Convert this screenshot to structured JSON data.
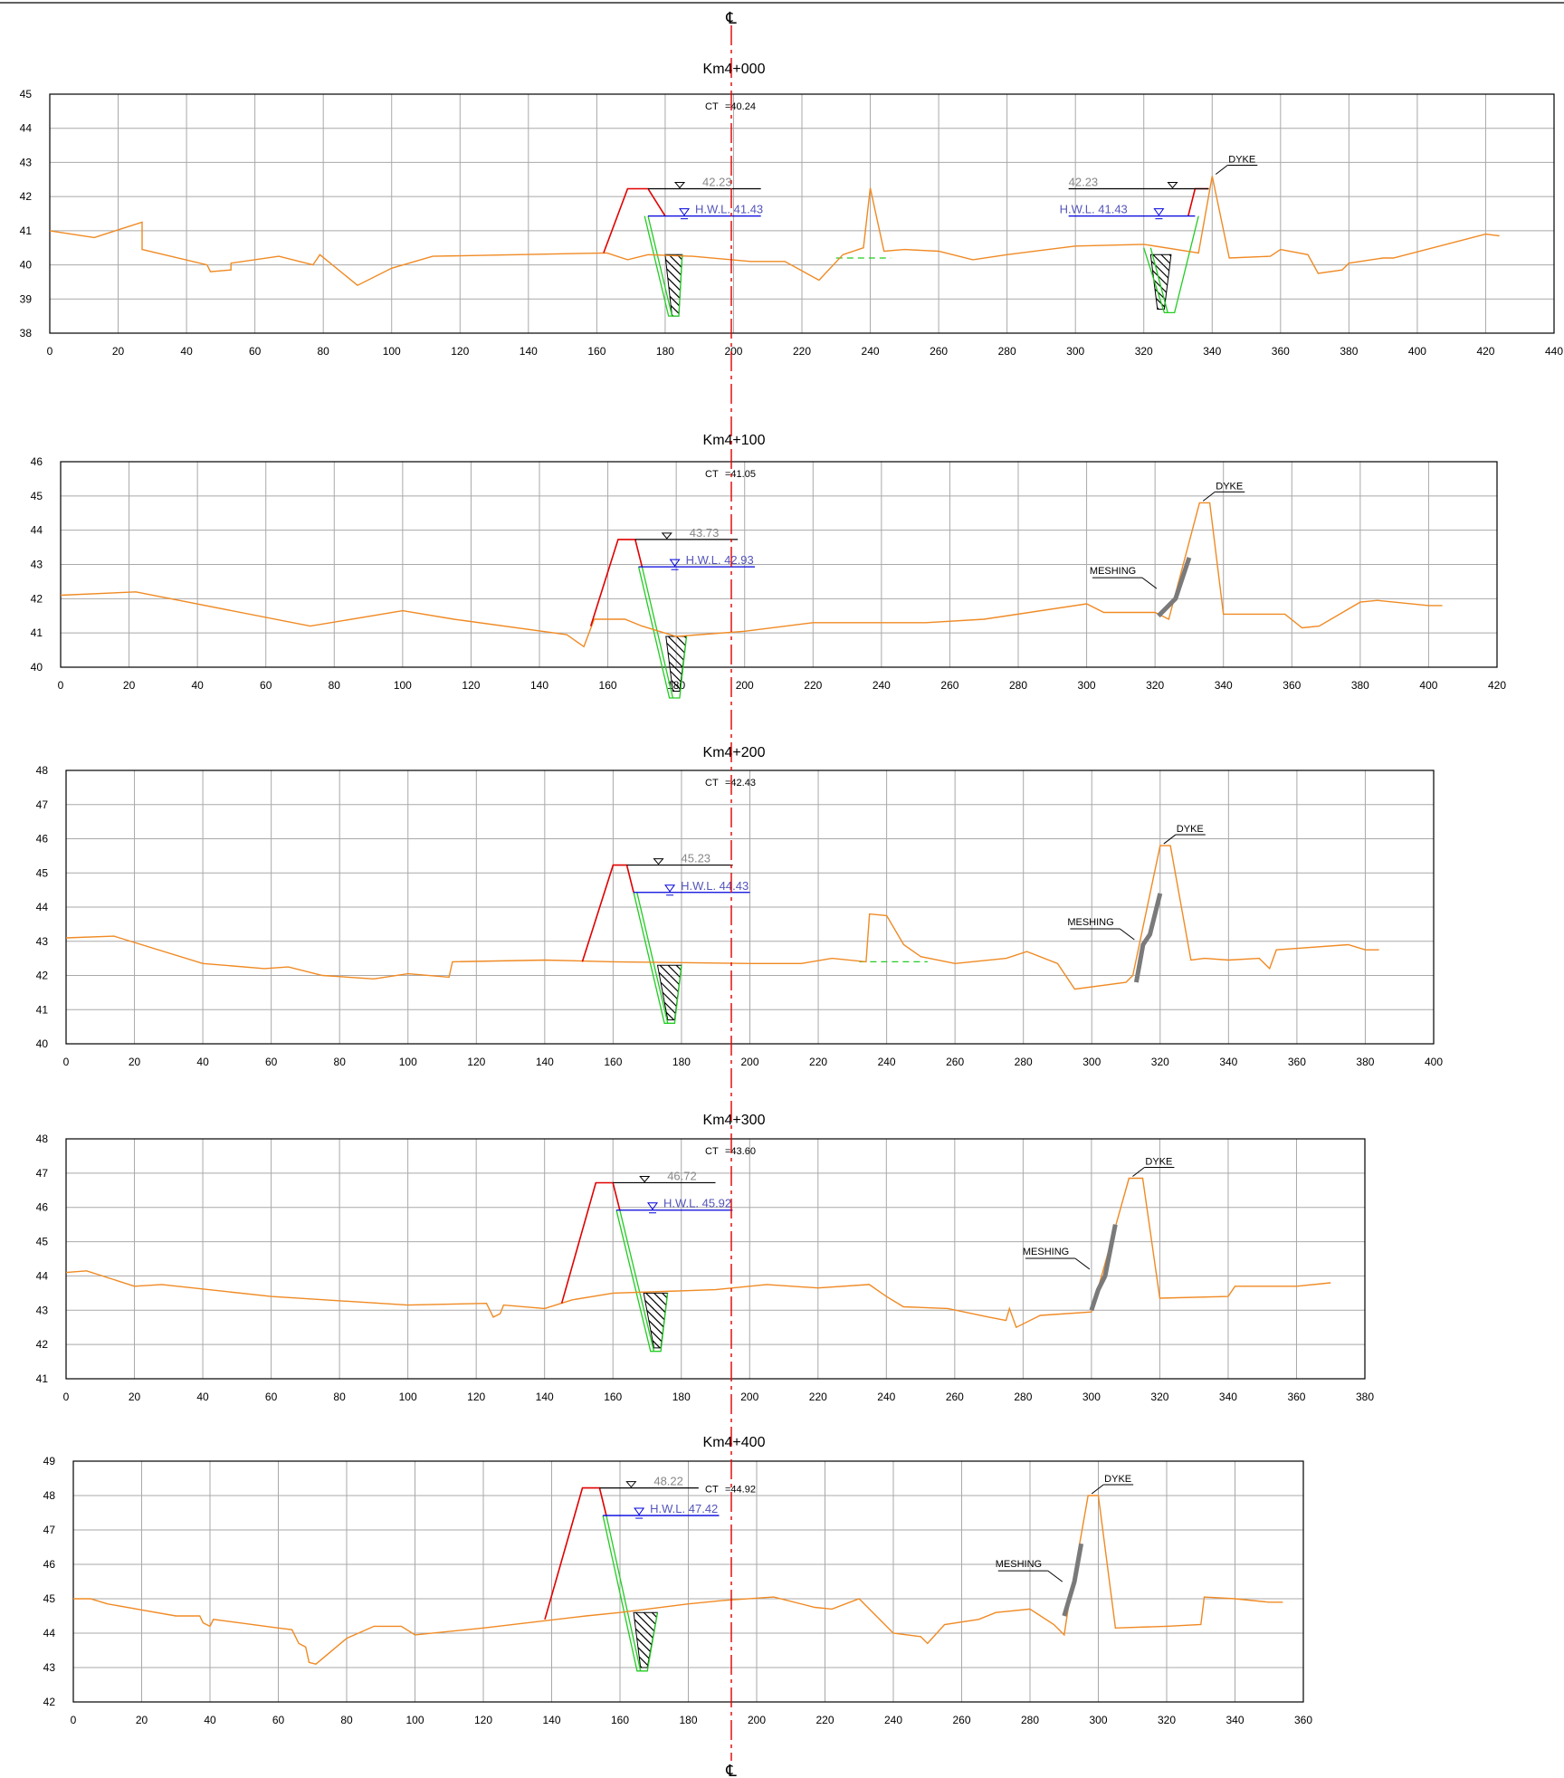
{
  "centerline_symbol": "℄",
  "colors": {
    "ground": "#f08a24",
    "slope": "#e00000",
    "canal": "#22cc22",
    "hwl": "#0000dd",
    "grid": "#a9a9a9",
    "centerline": "#e00000"
  },
  "sections": [
    {
      "title": "Km4+000",
      "ct_label": "CT",
      "ct_value": "=40.24",
      "xlim": [
        0,
        440
      ],
      "ylim": [
        38,
        45
      ],
      "x_step": 20,
      "crest_level": "42.23",
      "hwl_label": "H.W.L.",
      "hwl_value": "41.43",
      "right_crest_level": "42.23",
      "right_hwl_label": "H.W.L.",
      "right_hwl_value": "41.43",
      "dyke_label": "DYKE",
      "meshing_label": "",
      "ground": [
        [
          0,
          41
        ],
        [
          13,
          40.8
        ],
        [
          27,
          41.25
        ],
        [
          27,
          40.45
        ],
        [
          46,
          40
        ],
        [
          47,
          39.8
        ],
        [
          53,
          39.85
        ],
        [
          53,
          40.05
        ],
        [
          67,
          40.25
        ],
        [
          77,
          40
        ],
        [
          79,
          40.3
        ],
        [
          90,
          39.4
        ],
        [
          100,
          39.9
        ],
        [
          112,
          40.25
        ],
        [
          163,
          40.35
        ],
        [
          169,
          40.15
        ],
        [
          175,
          40.3
        ],
        [
          188,
          40.25
        ],
        [
          205,
          40.1
        ],
        [
          215,
          40.1
        ],
        [
          225,
          39.55
        ],
        [
          232,
          40.3
        ],
        [
          238,
          40.5
        ],
        [
          240,
          42.25
        ],
        [
          244,
          40.4
        ],
        [
          250,
          40.45
        ],
        [
          260,
          40.4
        ],
        [
          270,
          40.15
        ],
        [
          280,
          40.3
        ],
        [
          300,
          40.55
        ],
        [
          320,
          40.6
        ],
        [
          336,
          40.35
        ],
        [
          340,
          42.6
        ],
        [
          345,
          40.2
        ],
        [
          357,
          40.25
        ],
        [
          360,
          40.45
        ],
        [
          368,
          40.3
        ],
        [
          371,
          39.75
        ],
        [
          378,
          39.85
        ],
        [
          380,
          40.05
        ],
        [
          390,
          40.2
        ],
        [
          393,
          40.2
        ],
        [
          420,
          40.9
        ],
        [
          424,
          40.85
        ]
      ],
      "left_slope": [
        [
          162,
          40.35
        ],
        [
          169,
          42.23
        ],
        [
          175,
          42.23
        ],
        [
          180,
          41.43
        ]
      ],
      "right_slope": [
        [
          333,
          41.43
        ],
        [
          335,
          42.23
        ],
        [
          339,
          42.23
        ]
      ],
      "crest_line": [
        175,
        208
      ],
      "right_crest_line": [
        298,
        339
      ],
      "hwl_line": [
        175,
        208
      ],
      "right_hwl_line": [
        298,
        335
      ],
      "canal_a": [
        [
          174,
          41.43
        ],
        [
          181,
          38.5
        ],
        [
          184,
          38.5
        ],
        [
          185,
          40.3
        ]
      ],
      "canal_a_inner": [
        [
          175,
          41.43
        ],
        [
          182,
          38.5
        ]
      ],
      "canal_b": [
        [
          320,
          40.5
        ],
        [
          326,
          38.6
        ],
        [
          329,
          38.6
        ],
        [
          336,
          41.43
        ]
      ],
      "canal_b_inner": [
        [
          322,
          40.5
        ],
        [
          327,
          38.6
        ]
      ],
      "hatch_a": [
        [
          180,
          40.3
        ],
        [
          185,
          40.3
        ],
        [
          184,
          38.5
        ],
        [
          182,
          38.5
        ]
      ],
      "hatch_b": [
        [
          322,
          40.3
        ],
        [
          328,
          40.3
        ],
        [
          326,
          38.7
        ],
        [
          324,
          38.7
        ]
      ],
      "dashed_green": [
        [
          230,
          40.2
        ],
        [
          246,
          40.2
        ]
      ],
      "meshing": []
    },
    {
      "title": "Km4+100",
      "ct_label": "CT",
      "ct_value": "=41.05",
      "xlim": [
        0,
        420
      ],
      "ylim": [
        40,
        46
      ],
      "x_step": 20,
      "crest_level": "43.73",
      "hwl_label": "H.W.L.",
      "hwl_value": "42.93",
      "right_crest_level": "",
      "right_hwl_label": "",
      "right_hwl_value": "",
      "dyke_label": "DYKE",
      "meshing_label": "MESHING",
      "ground": [
        [
          0,
          42.1
        ],
        [
          22,
          42.2
        ],
        [
          73,
          41.2
        ],
        [
          100,
          41.65
        ],
        [
          115,
          41.4
        ],
        [
          148,
          40.95
        ],
        [
          153,
          40.6
        ],
        [
          156,
          41.4
        ],
        [
          165,
          41.4
        ],
        [
          170,
          41.2
        ],
        [
          180,
          40.9
        ],
        [
          200,
          41.05
        ],
        [
          220,
          41.3
        ],
        [
          240,
          41.3
        ],
        [
          253,
          41.3
        ],
        [
          270,
          41.4
        ],
        [
          300,
          41.85
        ],
        [
          305,
          41.6
        ],
        [
          320,
          41.6
        ],
        [
          324,
          41.4
        ],
        [
          333,
          44.8
        ],
        [
          336,
          44.8
        ],
        [
          340,
          41.55
        ],
        [
          358,
          41.55
        ],
        [
          363,
          41.15
        ],
        [
          368,
          41.2
        ],
        [
          380,
          41.9
        ],
        [
          385,
          41.95
        ],
        [
          400,
          41.8
        ],
        [
          404,
          41.8
        ]
      ],
      "left_slope": [
        [
          155,
          41.2
        ],
        [
          163,
          43.73
        ],
        [
          168,
          43.73
        ],
        [
          170,
          42.93
        ]
      ],
      "right_slope": [],
      "crest_line": [
        168,
        198
      ],
      "right_crest_line": [],
      "hwl_line": [
        169,
        203
      ],
      "right_hwl_line": [],
      "canal_a": [
        [
          169,
          42.93
        ],
        [
          178,
          39.1
        ],
        [
          181,
          39.1
        ],
        [
          183,
          40.9
        ]
      ],
      "canal_a_inner": [
        [
          170,
          42.93
        ],
        [
          179,
          39.1
        ]
      ],
      "canal_b": [],
      "canal_b_inner": [],
      "hatch_a": [
        [
          177,
          40.9
        ],
        [
          183,
          40.9
        ],
        [
          181,
          39.3
        ],
        [
          179,
          39.3
        ]
      ],
      "hatch_b": [],
      "dashed_green": [],
      "meshing": [
        [
          321,
          41.5
        ],
        [
          326,
          42
        ],
        [
          330,
          43.2
        ]
      ]
    },
    {
      "title": "Km4+200",
      "ct_label": "CT",
      "ct_value": "=42.43",
      "xlim": [
        0,
        400
      ],
      "ylim": [
        40,
        48
      ],
      "x_step": 20,
      "crest_level": "45.23",
      "hwl_label": "H.W.L.",
      "hwl_value": "44.43",
      "right_crest_level": "",
      "right_hwl_label": "",
      "right_hwl_value": "",
      "dyke_label": "DYKE",
      "meshing_label": "MESHING",
      "ground": [
        [
          0,
          43.1
        ],
        [
          14,
          43.15
        ],
        [
          40,
          42.35
        ],
        [
          58,
          42.2
        ],
        [
          65,
          42.25
        ],
        [
          75,
          42
        ],
        [
          90,
          41.9
        ],
        [
          100,
          42.05
        ],
        [
          112,
          41.95
        ],
        [
          113,
          42.4
        ],
        [
          140,
          42.45
        ],
        [
          160,
          42.4
        ],
        [
          200,
          42.35
        ],
        [
          215,
          42.35
        ],
        [
          224,
          42.5
        ],
        [
          234,
          42.4
        ],
        [
          235,
          43.8
        ],
        [
          240,
          43.75
        ],
        [
          245,
          42.9
        ],
        [
          250,
          42.55
        ],
        [
          260,
          42.35
        ],
        [
          275,
          42.5
        ],
        [
          281,
          42.7
        ],
        [
          290,
          42.35
        ],
        [
          295,
          41.6
        ],
        [
          310,
          41.8
        ],
        [
          312,
          42
        ],
        [
          320,
          45.8
        ],
        [
          323,
          45.8
        ],
        [
          329,
          42.45
        ],
        [
          333,
          42.5
        ],
        [
          340,
          42.45
        ],
        [
          349,
          42.5
        ],
        [
          352,
          42.2
        ],
        [
          354,
          42.75
        ],
        [
          361,
          42.8
        ],
        [
          375,
          42.9
        ],
        [
          380,
          42.75
        ],
        [
          384,
          42.75
        ]
      ],
      "left_slope": [
        [
          151,
          42.4
        ],
        [
          160,
          45.23
        ],
        [
          164,
          45.23
        ],
        [
          166,
          44.43
        ]
      ],
      "right_slope": [],
      "crest_line": [
        164,
        195
      ],
      "right_crest_line": [],
      "hwl_line": [
        166,
        200
      ],
      "right_hwl_line": [],
      "canal_a": [
        [
          166,
          44.43
        ],
        [
          175,
          40.6
        ],
        [
          178,
          40.6
        ],
        [
          180,
          42.3
        ]
      ],
      "canal_a_inner": [
        [
          167,
          44.43
        ],
        [
          176,
          40.6
        ]
      ],
      "canal_b": [],
      "canal_b_inner": [],
      "hatch_a": [
        [
          173,
          42.3
        ],
        [
          180,
          42.3
        ],
        [
          178,
          40.7
        ],
        [
          176,
          40.7
        ]
      ],
      "hatch_b": [],
      "dashed_green": [
        [
          232,
          42.4
        ],
        [
          252,
          42.4
        ]
      ],
      "meshing": [
        [
          313,
          41.8
        ],
        [
          315,
          42.9
        ],
        [
          317,
          43.2
        ],
        [
          320,
          44.4
        ]
      ]
    },
    {
      "title": "Km4+300",
      "ct_label": "CT",
      "ct_value": "=43.60",
      "xlim": [
        0,
        380
      ],
      "ylim": [
        41,
        48
      ],
      "x_step": 20,
      "crest_level": "46.72",
      "hwl_label": "H.W.L.",
      "hwl_value": "45.92",
      "right_crest_level": "",
      "right_hwl_label": "",
      "right_hwl_value": "",
      "dyke_label": "DYKE",
      "meshing_label": "MESHING",
      "ground": [
        [
          0,
          44.1
        ],
        [
          6,
          44.15
        ],
        [
          20,
          43.7
        ],
        [
          28,
          43.75
        ],
        [
          60,
          43.4
        ],
        [
          100,
          43.15
        ],
        [
          123,
          43.2
        ],
        [
          125,
          42.8
        ],
        [
          127,
          42.9
        ],
        [
          128,
          43.15
        ],
        [
          140,
          43.05
        ],
        [
          148,
          43.3
        ],
        [
          160,
          43.5
        ],
        [
          175,
          43.55
        ],
        [
          190,
          43.6
        ],
        [
          205,
          43.75
        ],
        [
          220,
          43.65
        ],
        [
          235,
          43.75
        ],
        [
          240,
          43.4
        ],
        [
          245,
          43.1
        ],
        [
          258,
          43.05
        ],
        [
          270,
          42.8
        ],
        [
          275,
          42.7
        ],
        [
          276,
          43.05
        ],
        [
          278,
          42.5
        ],
        [
          285,
          42.85
        ],
        [
          300,
          42.95
        ],
        [
          311,
          46.85
        ],
        [
          315,
          46.85
        ],
        [
          320,
          43.35
        ],
        [
          340,
          43.4
        ],
        [
          342,
          43.7
        ],
        [
          360,
          43.7
        ],
        [
          370,
          43.8
        ]
      ],
      "left_slope": [
        [
          145,
          43.2
        ],
        [
          155,
          46.72
        ],
        [
          160,
          46.72
        ],
        [
          162,
          45.92
        ]
      ],
      "right_slope": [],
      "crest_line": [
        160,
        190
      ],
      "right_crest_line": [],
      "hwl_line": [
        161,
        195
      ],
      "right_hwl_line": [],
      "canal_a": [
        [
          161,
          45.92
        ],
        [
          171,
          41.8
        ],
        [
          174,
          41.8
        ],
        [
          176,
          43.5
        ]
      ],
      "canal_a_inner": [
        [
          162,
          45.92
        ],
        [
          172,
          41.8
        ]
      ],
      "canal_b": [],
      "canal_b_inner": [],
      "hatch_a": [
        [
          169,
          43.5
        ],
        [
          176,
          43.5
        ],
        [
          174,
          41.9
        ],
        [
          172,
          41.9
        ]
      ],
      "hatch_b": [],
      "dashed_green": [],
      "meshing": [
        [
          300,
          43
        ],
        [
          302,
          43.6
        ],
        [
          304,
          44
        ],
        [
          307,
          45.5
        ]
      ]
    },
    {
      "title": "Km4+400",
      "ct_label": "CT",
      "ct_value": "=44.92",
      "xlim": [
        0,
        360
      ],
      "ylim": [
        42,
        49
      ],
      "x_step": 20,
      "crest_level": "48.22",
      "hwl_label": "H.W.L.",
      "hwl_value": "47.42",
      "right_crest_level": "",
      "right_hwl_label": "",
      "right_hwl_value": "",
      "dyke_label": "DYKE",
      "meshing_label": "MESHING",
      "ground": [
        [
          0,
          45
        ],
        [
          5,
          45
        ],
        [
          10,
          44.85
        ],
        [
          30,
          44.5
        ],
        [
          37,
          44.5
        ],
        [
          38,
          44.3
        ],
        [
          40,
          44.2
        ],
        [
          41,
          44.4
        ],
        [
          60,
          44.15
        ],
        [
          64,
          44.1
        ],
        [
          66,
          43.7
        ],
        [
          68,
          43.6
        ],
        [
          69,
          43.15
        ],
        [
          71,
          43.1
        ],
        [
          80,
          43.85
        ],
        [
          88,
          44.2
        ],
        [
          96,
          44.2
        ],
        [
          100,
          43.95
        ],
        [
          120,
          44.15
        ],
        [
          150,
          44.5
        ],
        [
          160,
          44.6
        ],
        [
          180,
          44.85
        ],
        [
          190,
          44.95
        ],
        [
          205,
          45.05
        ],
        [
          217,
          44.75
        ],
        [
          222,
          44.7
        ],
        [
          230,
          45
        ],
        [
          235,
          44.5
        ],
        [
          240,
          44
        ],
        [
          248,
          43.9
        ],
        [
          250,
          43.7
        ],
        [
          255,
          44.25
        ],
        [
          265,
          44.4
        ],
        [
          270,
          44.6
        ],
        [
          280,
          44.7
        ],
        [
          287,
          44.25
        ],
        [
          290,
          43.95
        ],
        [
          291,
          44.6
        ],
        [
          297,
          48
        ],
        [
          300,
          48
        ],
        [
          305,
          44.15
        ],
        [
          320,
          44.2
        ],
        [
          330,
          44.25
        ],
        [
          331,
          45.05
        ],
        [
          340,
          45
        ],
        [
          350,
          44.9
        ],
        [
          354,
          44.9
        ]
      ],
      "left_slope": [
        [
          138,
          44.4
        ],
        [
          149,
          48.22
        ],
        [
          154,
          48.22
        ],
        [
          156,
          47.42
        ]
      ],
      "right_slope": [],
      "crest_line": [
        154,
        183
      ],
      "right_crest_line": [],
      "hwl_line": [
        155,
        189
      ],
      "right_hwl_line": [],
      "canal_a": [
        [
          155,
          47.42
        ],
        [
          165,
          42.9
        ],
        [
          168,
          42.9
        ],
        [
          171,
          44.6
        ]
      ],
      "canal_a_inner": [
        [
          156,
          47.42
        ],
        [
          166,
          42.9
        ]
      ],
      "canal_b": [],
      "canal_b_inner": [],
      "hatch_a": [
        [
          164,
          44.6
        ],
        [
          171,
          44.6
        ],
        [
          168,
          43
        ],
        [
          166,
          43
        ]
      ],
      "hatch_b": [],
      "dashed_green": [],
      "meshing": [
        [
          290,
          44.5
        ],
        [
          293,
          45.5
        ],
        [
          295,
          46.6
        ]
      ]
    }
  ]
}
